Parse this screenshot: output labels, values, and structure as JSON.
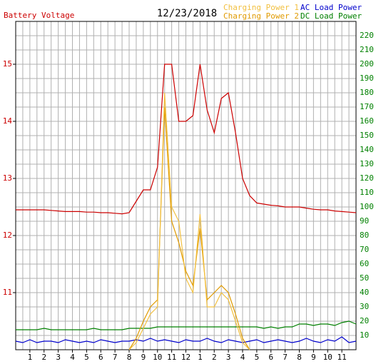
{
  "chart_data": {
    "type": "line",
    "title": "12/23/2018",
    "x": [
      0,
      0.5,
      1,
      1.5,
      2,
      2.5,
      3,
      3.5,
      4,
      4.5,
      5,
      5.5,
      6,
      6.5,
      7,
      7.5,
      8,
      8.5,
      9,
      9.5,
      10,
      10.5,
      11,
      11.5,
      12,
      12.5,
      13,
      13.5,
      14,
      14.5,
      15,
      15.5,
      16,
      16.5,
      17,
      17.5,
      18,
      18.5,
      19,
      19.5,
      20,
      20.5,
      21,
      21.5,
      22,
      22.5,
      23,
      23.5,
      24
    ],
    "xlim": [
      0,
      24
    ],
    "xticks": [
      1,
      2,
      3,
      4,
      5,
      6,
      7,
      8,
      9,
      10,
      11,
      12,
      {
        "value": 13,
        "label": "1"
      },
      {
        "value": 14,
        "label": "2"
      },
      {
        "value": 15,
        "label": "3"
      },
      {
        "value": 16,
        "label": "4"
      },
      {
        "value": 17,
        "label": "5"
      },
      {
        "value": 18,
        "label": "6"
      },
      {
        "value": 19,
        "label": "7"
      },
      {
        "value": 20,
        "label": "8"
      },
      {
        "value": 21,
        "label": "9"
      },
      {
        "value": 22,
        "label": "10"
      },
      {
        "value": 23,
        "label": "11"
      }
    ],
    "ylim": [
      10,
      15.75
    ],
    "yticks": [
      11,
      12,
      13,
      14,
      15
    ],
    "y2lim": [
      0,
      230
    ],
    "y2ticks": [
      10,
      20,
      30,
      40,
      50,
      60,
      70,
      80,
      90,
      100,
      110,
      120,
      130,
      140,
      150,
      160,
      170,
      180,
      190,
      200,
      210,
      220
    ],
    "grid": true,
    "legend": "top-right",
    "series": [
      {
        "name": "Battery Voltage",
        "color": "#cc0000",
        "values": [
          12.45,
          12.45,
          12.45,
          12.45,
          12.45,
          12.44,
          12.43,
          12.42,
          12.42,
          12.42,
          12.41,
          12.41,
          12.4,
          12.4,
          12.39,
          12.38,
          12.4,
          12.6,
          12.8,
          12.8,
          13.2,
          15.0,
          15.0,
          14.0,
          14.0,
          14.1,
          15.0,
          14.2,
          13.8,
          14.4,
          14.5,
          13.8,
          13.0,
          12.7,
          12.57,
          12.55,
          12.53,
          12.52,
          12.5,
          12.5,
          12.5,
          12.48,
          12.46,
          12.45,
          12.45,
          12.43,
          12.42,
          12.41,
          12.4
        ]
      },
      {
        "name": "Charging Power 1",
        "color": "#f2c040",
        "axis": "y2",
        "values": [
          null,
          null,
          null,
          null,
          null,
          null,
          null,
          null,
          null,
          null,
          null,
          null,
          null,
          null,
          null,
          null,
          0,
          5,
          15,
          25,
          30,
          180,
          100,
          90,
          50,
          40,
          95,
          30,
          30,
          40,
          35,
          20,
          5,
          0,
          null,
          null,
          null,
          null,
          null,
          null,
          null,
          null,
          null,
          null,
          null,
          null,
          null,
          null,
          null
        ]
      },
      {
        "name": "Charging Power 2",
        "color": "#e09a00",
        "axis": "y2",
        "values": [
          null,
          null,
          null,
          null,
          null,
          null,
          null,
          null,
          null,
          null,
          null,
          null,
          null,
          null,
          null,
          null,
          0,
          8,
          20,
          30,
          35,
          170,
          90,
          75,
          55,
          45,
          85,
          35,
          40,
          45,
          40,
          25,
          8,
          0,
          null,
          null,
          null,
          null,
          null,
          null,
          null,
          null,
          null,
          null,
          null,
          null,
          null,
          null,
          null
        ]
      },
      {
        "name": "AC Load Power",
        "color": "#0000cc",
        "axis": "y2",
        "values": [
          6,
          5,
          7,
          5,
          6,
          6,
          5,
          7,
          6,
          5,
          6,
          5,
          7,
          6,
          5,
          6,
          6,
          7,
          6,
          8,
          6,
          7,
          6,
          5,
          7,
          6,
          6,
          8,
          6,
          5,
          7,
          6,
          5,
          6,
          7,
          5,
          6,
          7,
          6,
          5,
          6,
          8,
          6,
          5,
          7,
          6,
          9,
          5,
          6
        ]
      },
      {
        "name": "DC Load Power",
        "color": "#008000",
        "axis": "y2",
        "values": [
          14,
          14,
          14,
          14,
          15,
          14,
          14,
          14,
          14,
          14,
          14,
          15,
          14,
          14,
          14,
          14,
          15,
          15,
          15,
          15,
          16,
          16,
          16,
          16,
          16,
          16,
          16,
          16,
          16,
          16,
          16,
          16,
          16,
          16,
          16,
          15,
          16,
          15,
          16,
          16,
          18,
          18,
          17,
          18,
          18,
          17,
          19,
          20,
          18
        ]
      }
    ]
  }
}
